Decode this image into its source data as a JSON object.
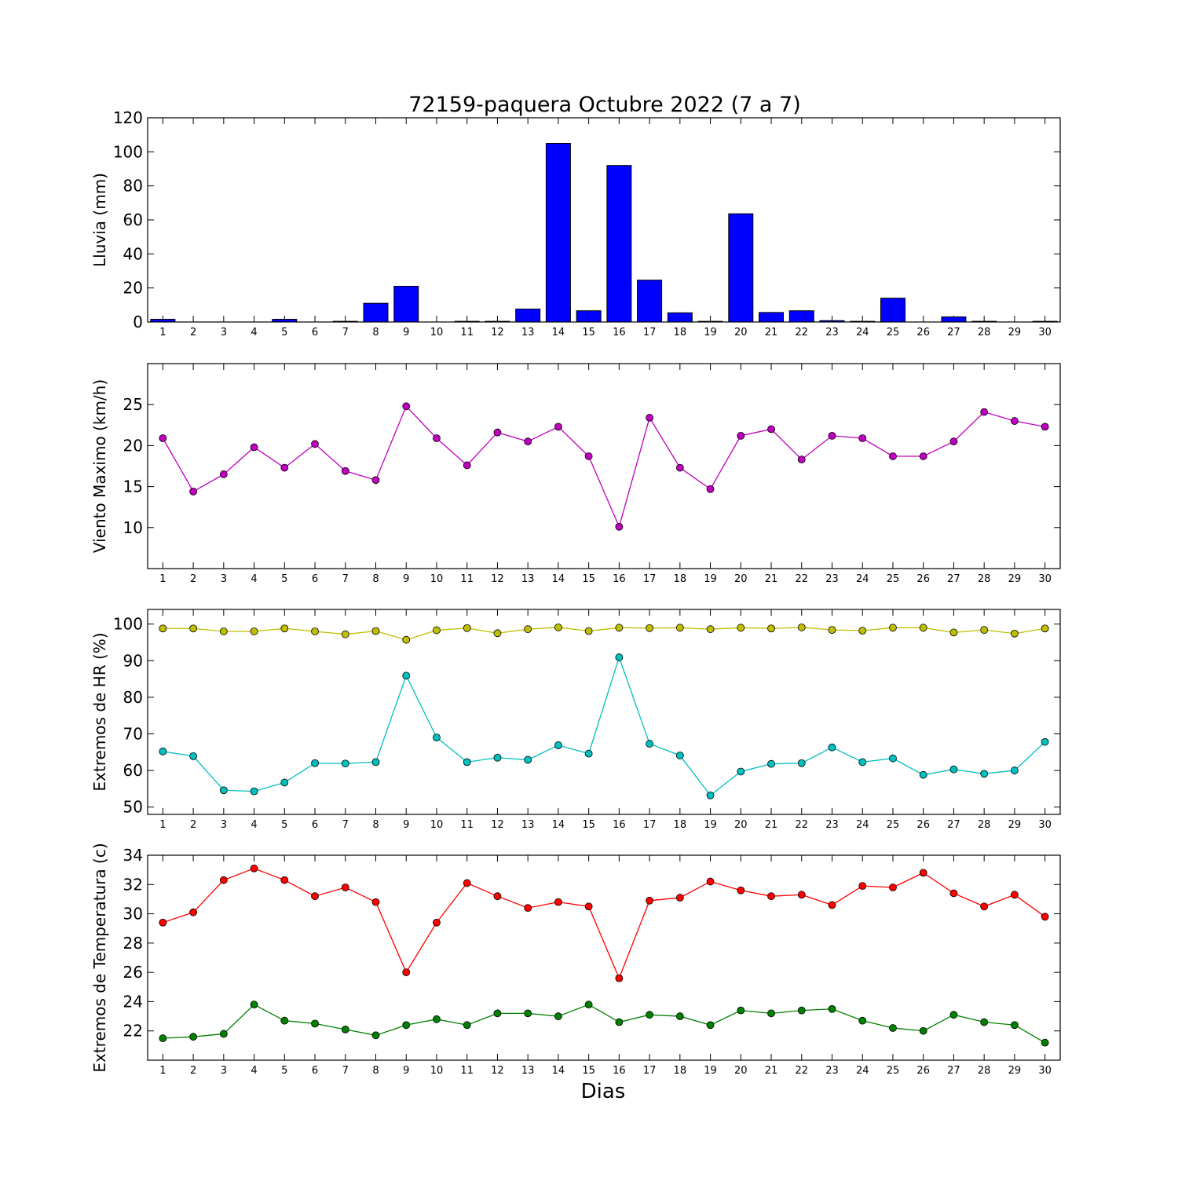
{
  "title": "72159-paquera Octubre 2022  (7 a 7)",
  "xlabel": "Dias",
  "colors": {
    "rain": "#0000ff",
    "wind": "#bf00bf",
    "hr_max": "#bfbf00",
    "hr_min": "#00bfbf",
    "t_max": "#ff0000",
    "t_min": "#008000"
  },
  "chart_data": [
    {
      "type": "bar",
      "ylabel": "Lluvia (mm)",
      "ylim": [
        0,
        120
      ],
      "yticks": [
        0,
        20,
        40,
        60,
        80,
        100,
        120
      ],
      "categories": [
        1,
        2,
        3,
        4,
        5,
        6,
        7,
        8,
        9,
        10,
        11,
        12,
        13,
        14,
        15,
        16,
        17,
        18,
        19,
        20,
        21,
        22,
        23,
        24,
        25,
        26,
        27,
        28,
        29,
        30
      ],
      "values": [
        1.6,
        0,
        0,
        0,
        1.6,
        0,
        0.4,
        11,
        21,
        0,
        0.4,
        0.4,
        7.6,
        105,
        6.6,
        92,
        24.6,
        5.4,
        0.4,
        63.6,
        5.6,
        6.6,
        0.8,
        0.4,
        14,
        0,
        3,
        0.4,
        0,
        0.4
      ]
    },
    {
      "type": "line",
      "ylabel": "Viento Maximo (km/h)",
      "ylim": [
        5,
        30
      ],
      "yticks": [
        10,
        15,
        20,
        25
      ],
      "x": [
        1,
        2,
        3,
        4,
        5,
        6,
        7,
        8,
        9,
        10,
        11,
        12,
        13,
        14,
        15,
        16,
        17,
        18,
        19,
        20,
        21,
        22,
        23,
        24,
        25,
        26,
        27,
        28,
        29,
        30
      ],
      "series": [
        {
          "color_key": "wind",
          "values": [
            20.9,
            14.4,
            16.5,
            19.8,
            17.3,
            20.2,
            16.9,
            15.8,
            24.8,
            20.9,
            17.6,
            21.6,
            20.5,
            22.3,
            18.7,
            10.1,
            23.4,
            17.3,
            14.7,
            21.2,
            22.0,
            18.3,
            21.2,
            20.9,
            18.7,
            18.7,
            20.5,
            24.1,
            23.0,
            22.3
          ]
        }
      ]
    },
    {
      "type": "line",
      "ylabel": "Extremos de HR (%)",
      "ylim": [
        48,
        104
      ],
      "yticks": [
        50,
        60,
        70,
        80,
        90,
        100
      ],
      "x": [
        1,
        2,
        3,
        4,
        5,
        6,
        7,
        8,
        9,
        10,
        11,
        12,
        13,
        14,
        15,
        16,
        17,
        18,
        19,
        20,
        21,
        22,
        23,
        24,
        25,
        26,
        27,
        28,
        29,
        30
      ],
      "series": [
        {
          "color_key": "hr_max",
          "values": [
            98.8,
            98.8,
            98.0,
            98.0,
            98.8,
            98.0,
            97.2,
            98.1,
            95.7,
            98.3,
            98.9,
            97.5,
            98.6,
            99.1,
            98.1,
            99.0,
            98.9,
            99.0,
            98.6,
            99.0,
            98.8,
            99.1,
            98.4,
            98.2,
            99.0,
            99.0,
            97.7,
            98.4,
            97.4,
            98.8
          ]
        },
        {
          "color_key": "hr_min",
          "values": [
            65.2,
            63.9,
            54.6,
            54.3,
            56.7,
            62.0,
            61.9,
            62.3,
            85.9,
            69.0,
            62.3,
            63.5,
            62.9,
            66.9,
            64.6,
            90.9,
            67.3,
            64.1,
            53.2,
            59.7,
            61.8,
            62.0,
            66.3,
            62.3,
            63.3,
            58.8,
            60.3,
            59.1,
            60.0,
            67.8
          ]
        }
      ]
    },
    {
      "type": "line",
      "ylabel": "Extremos de Temperatura (c)",
      "ylim": [
        20,
        34
      ],
      "yticks": [
        22,
        24,
        26,
        28,
        30,
        32,
        34
      ],
      "x": [
        1,
        2,
        3,
        4,
        5,
        6,
        7,
        8,
        9,
        10,
        11,
        12,
        13,
        14,
        15,
        16,
        17,
        18,
        19,
        20,
        21,
        22,
        23,
        24,
        25,
        26,
        27,
        28,
        29,
        30
      ],
      "series": [
        {
          "color_key": "t_max",
          "values": [
            29.4,
            30.1,
            32.3,
            33.1,
            32.3,
            31.2,
            31.8,
            30.8,
            26.0,
            29.4,
            32.1,
            31.2,
            30.4,
            30.8,
            30.5,
            25.6,
            30.9,
            31.1,
            32.2,
            31.6,
            31.2,
            31.3,
            30.6,
            31.9,
            31.8,
            32.8,
            31.4,
            30.5,
            31.3,
            29.8
          ]
        },
        {
          "color_key": "t_min",
          "values": [
            21.5,
            21.6,
            21.8,
            23.8,
            22.7,
            22.5,
            22.1,
            21.7,
            22.4,
            22.8,
            22.4,
            23.2,
            23.2,
            23.0,
            23.8,
            22.6,
            23.1,
            23.0,
            22.4,
            23.4,
            23.2,
            23.4,
            23.5,
            22.7,
            22.2,
            22.0,
            23.1,
            22.6,
            22.4,
            21.2
          ]
        }
      ]
    }
  ]
}
